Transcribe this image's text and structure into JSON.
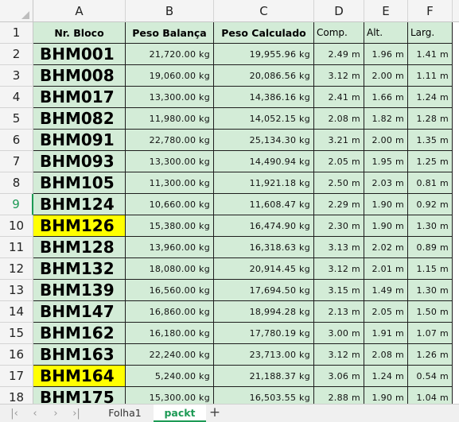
{
  "columns": [
    "A",
    "B",
    "C",
    "D",
    "E",
    "F"
  ],
  "header_row": {
    "row_num": "1",
    "cells": [
      "Nr. Bloco",
      "Peso Balança",
      "Peso Calculado",
      "Comp.",
      "Alt.",
      "Larg."
    ]
  },
  "rows": [
    {
      "row_num": "2",
      "bloco": "BHM001",
      "peso_balanca": "21,720.00 kg",
      "peso_calculado": "19,955.96 kg",
      "comp": "2.49 m",
      "alt": "1.96 m",
      "larg": "1.41 m",
      "highlight": false
    },
    {
      "row_num": "3",
      "bloco": "BHM008",
      "peso_balanca": "19,060.00 kg",
      "peso_calculado": "20,086.56 kg",
      "comp": "3.12 m",
      "alt": "2.00 m",
      "larg": "1.11 m",
      "highlight": false
    },
    {
      "row_num": "4",
      "bloco": "BHM017",
      "peso_balanca": "13,300.00 kg",
      "peso_calculado": "14,386.16 kg",
      "comp": "2.41 m",
      "alt": "1.66 m",
      "larg": "1.24 m",
      "highlight": false
    },
    {
      "row_num": "5",
      "bloco": "BHM082",
      "peso_balanca": "11,980.00 kg",
      "peso_calculado": "14,052.15 kg",
      "comp": "2.08 m",
      "alt": "1.82 m",
      "larg": "1.28 m",
      "highlight": false
    },
    {
      "row_num": "6",
      "bloco": "BHM091",
      "peso_balanca": "22,780.00 kg",
      "peso_calculado": "25,134.30 kg",
      "comp": "3.21 m",
      "alt": "2.00 m",
      "larg": "1.35 m",
      "highlight": false
    },
    {
      "row_num": "7",
      "bloco": "BHM093",
      "peso_balanca": "13,300.00 kg",
      "peso_calculado": "14,490.94 kg",
      "comp": "2.05 m",
      "alt": "1.95 m",
      "larg": "1.25 m",
      "highlight": false
    },
    {
      "row_num": "8",
      "bloco": "BHM105",
      "peso_balanca": "11,300.00 kg",
      "peso_calculado": "11,921.18 kg",
      "comp": "2.50 m",
      "alt": "2.03 m",
      "larg": "0.81 m",
      "highlight": false
    },
    {
      "row_num": "9",
      "bloco": "BHM124",
      "peso_balanca": "10,660.00 kg",
      "peso_calculado": "11,608.47 kg",
      "comp": "2.29 m",
      "alt": "1.90 m",
      "larg": "0.92 m",
      "highlight": false,
      "active": true
    },
    {
      "row_num": "10",
      "bloco": "BHM126",
      "peso_balanca": "15,380.00 kg",
      "peso_calculado": "16,474.90 kg",
      "comp": "2.30 m",
      "alt": "1.90 m",
      "larg": "1.30 m",
      "highlight": true
    },
    {
      "row_num": "11",
      "bloco": "BHM128",
      "peso_balanca": "13,960.00 kg",
      "peso_calculado": "16,318.63 kg",
      "comp": "3.13 m",
      "alt": "2.02 m",
      "larg": "0.89 m",
      "highlight": false
    },
    {
      "row_num": "12",
      "bloco": "BHM132",
      "peso_balanca": "18,080.00 kg",
      "peso_calculado": "20,914.45 kg",
      "comp": "3.12 m",
      "alt": "2.01 m",
      "larg": "1.15 m",
      "highlight": false
    },
    {
      "row_num": "13",
      "bloco": "BHM139",
      "peso_balanca": "16,560.00 kg",
      "peso_calculado": "17,694.50 kg",
      "comp": "3.15 m",
      "alt": "1.49 m",
      "larg": "1.30 m",
      "highlight": false
    },
    {
      "row_num": "14",
      "bloco": "BHM147",
      "peso_balanca": "16,860.00 kg",
      "peso_calculado": "18,994.28 kg",
      "comp": "2.13 m",
      "alt": "2.05 m",
      "larg": "1.50 m",
      "highlight": false
    },
    {
      "row_num": "15",
      "bloco": "BHM162",
      "peso_balanca": "16,180.00 kg",
      "peso_calculado": "17,780.19 kg",
      "comp": "3.00 m",
      "alt": "1.91 m",
      "larg": "1.07 m",
      "highlight": false
    },
    {
      "row_num": "16",
      "bloco": "BHM163",
      "peso_balanca": "22,240.00 kg",
      "peso_calculado": "23,713.00 kg",
      "comp": "3.12 m",
      "alt": "2.08 m",
      "larg": "1.26 m",
      "highlight": false
    },
    {
      "row_num": "17",
      "bloco": "BHM164",
      "peso_balanca": "5,240.00 kg",
      "peso_calculado": "21,188.37 kg",
      "comp": "3.06 m",
      "alt": "1.24 m",
      "larg": "0.54 m",
      "highlight": true
    },
    {
      "row_num": "18",
      "bloco": "BHM175",
      "peso_balanca": "15,300.00 kg",
      "peso_calculado": "16,503.55 kg",
      "comp": "2.88 m",
      "alt": "1.90 m",
      "larg": "1.04 m",
      "highlight": false
    }
  ],
  "sheet_tabs": [
    {
      "label": "Folha1",
      "active": false
    },
    {
      "label": "packt",
      "active": true
    }
  ],
  "tab_nav_icons": [
    "first-sheet-icon",
    "prev-sheet-icon",
    "next-sheet-icon",
    "last-sheet-icon"
  ],
  "add_sheet_icon": "plus-icon",
  "colors": {
    "cell_fill": "#d3ecd7",
    "highlight_fill": "#ffff00",
    "active_accent": "#1d9a55",
    "header_bg": "#f4f4f4"
  }
}
